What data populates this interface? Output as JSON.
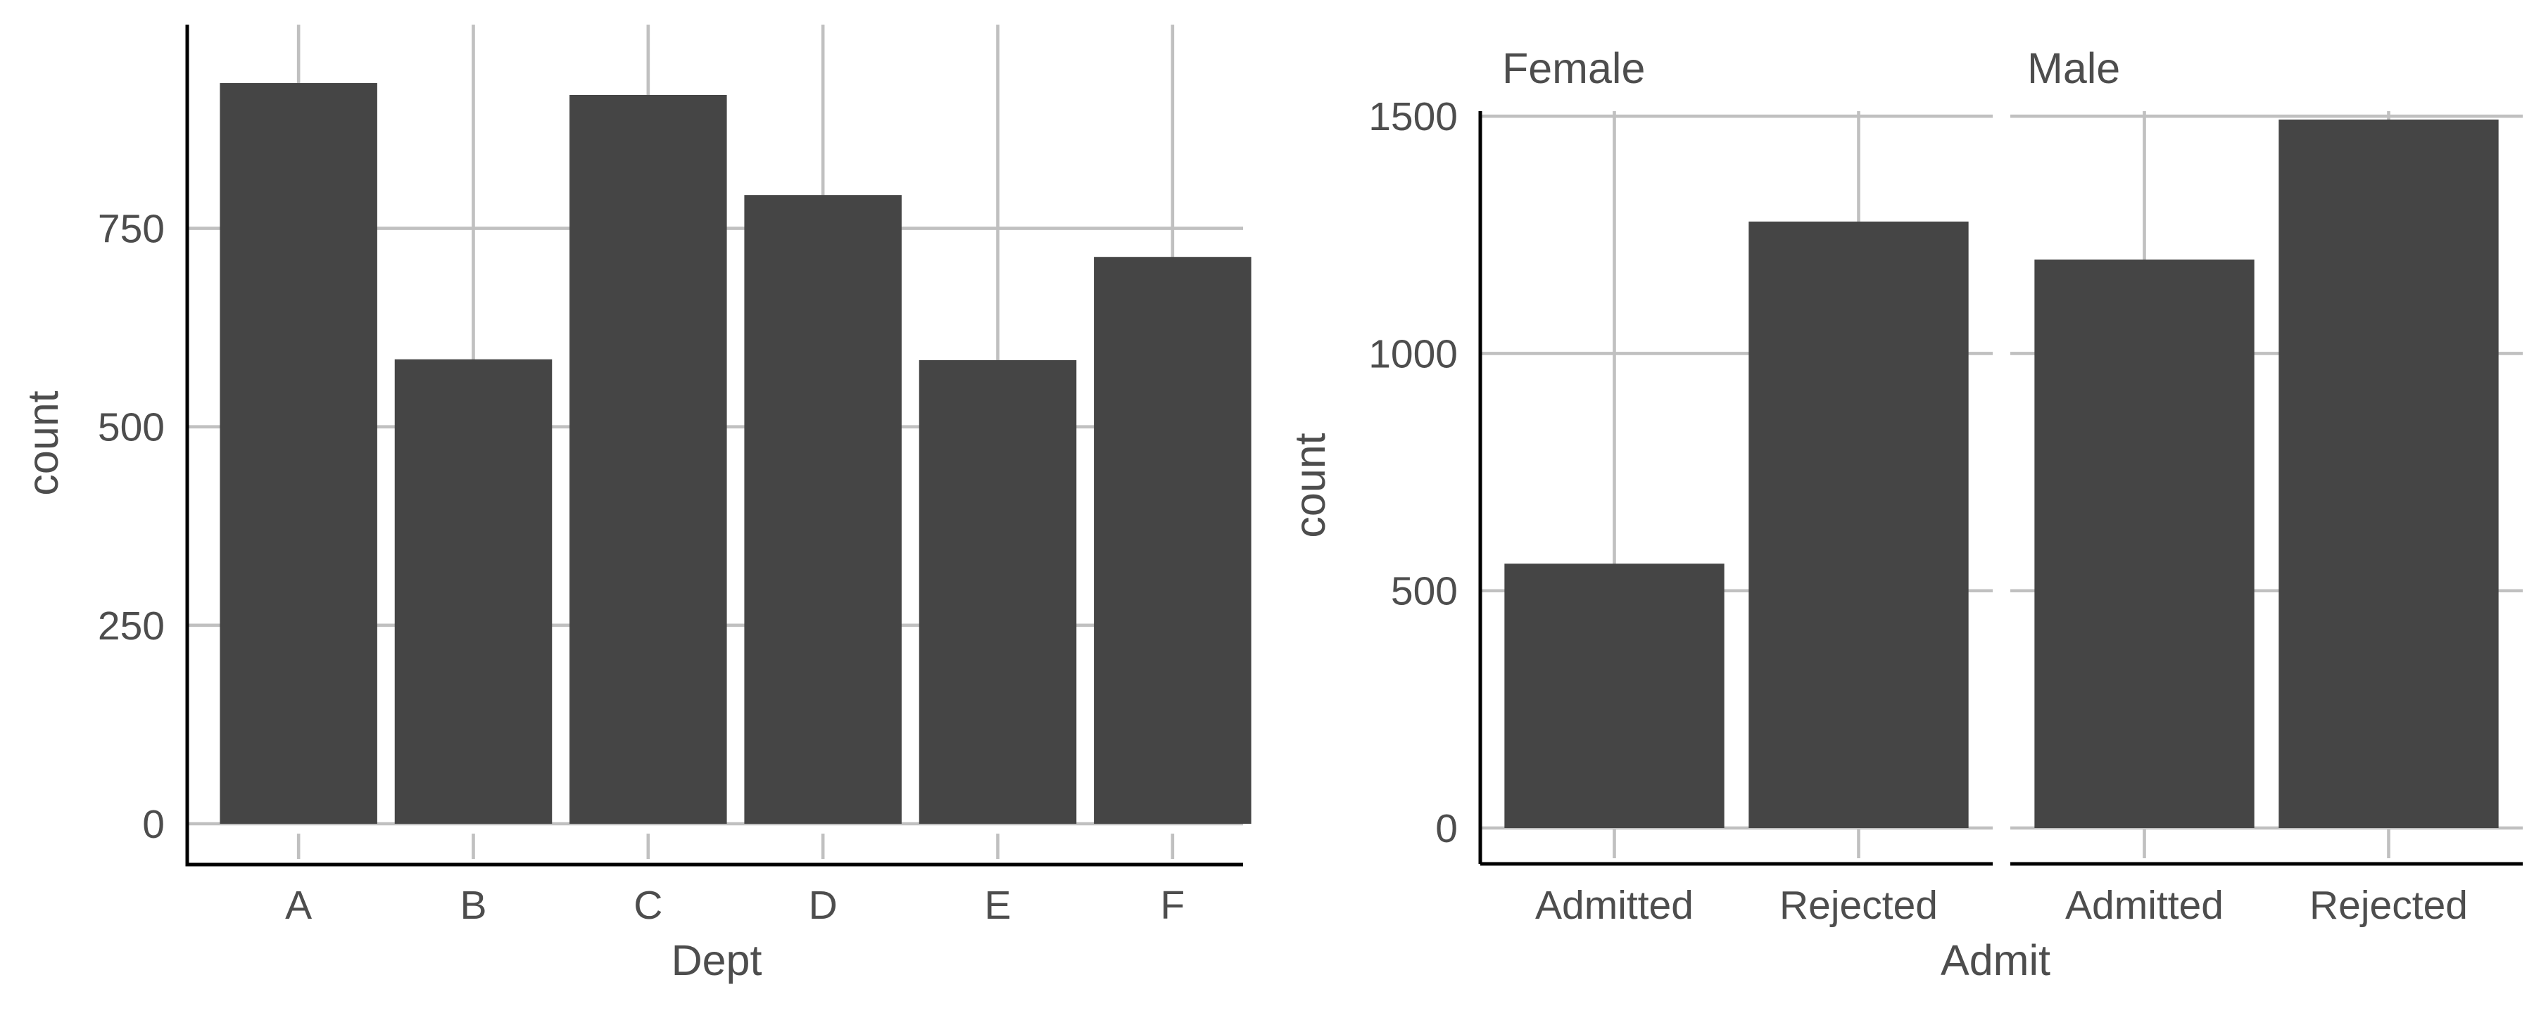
{
  "chart_data": [
    {
      "type": "bar",
      "categories": [
        "A",
        "B",
        "C",
        "D",
        "E",
        "F"
      ],
      "values": [
        933,
        585,
        918,
        792,
        584,
        714
      ],
      "xlabel": "Dept",
      "ylabel": "count",
      "yticks": [
        0,
        250,
        500,
        750
      ],
      "ylim": [
        0,
        980
      ],
      "grid": true,
      "bar_color": "#454545"
    },
    {
      "type": "bar",
      "categories": [
        "Admitted",
        "Rejected"
      ],
      "facets": [
        {
          "label": "Female",
          "values": [
            557,
            1278
          ]
        },
        {
          "label": "Male",
          "values": [
            1198,
            1493
          ]
        }
      ],
      "xlabel": "Admit",
      "ylabel": "count",
      "yticks": [
        0,
        500,
        1000,
        1500
      ],
      "ylim": [
        0,
        1570
      ],
      "grid": true,
      "bar_color": "#454545"
    }
  ]
}
